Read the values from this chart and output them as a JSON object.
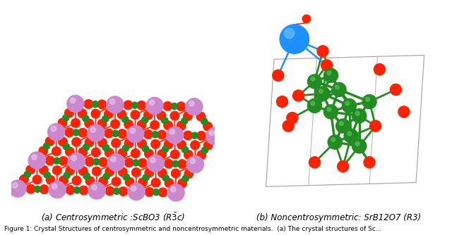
{
  "background_color": "#ffffff",
  "caption_left": "(a) Centrosymmetric :ScBO3 (R͝c)",
  "caption_right": "(b) Noncentrosymmetric: SrB12O7 (R3)",
  "caption_fontsize": 8.5,
  "fig_caption": "Figure 1: Crystal Structures of centrosymmetric and noncentrosymmetric materials.  (a) The crystal structures of Sc...",
  "fig_caption_fontsize": 6.5,
  "sc_color": "#CC88CC",
  "o_color_left": "#FF2200",
  "b_color": "#228B22",
  "bond_color_left": "#FF3300",
  "lattice_color": "#999999",
  "sr_color": "#1E90FF",
  "o_color_right": "#FF2200",
  "b_color_right": "#228B22",
  "bond_color_right": "#228B22",
  "box_color": "#aaaaaa"
}
